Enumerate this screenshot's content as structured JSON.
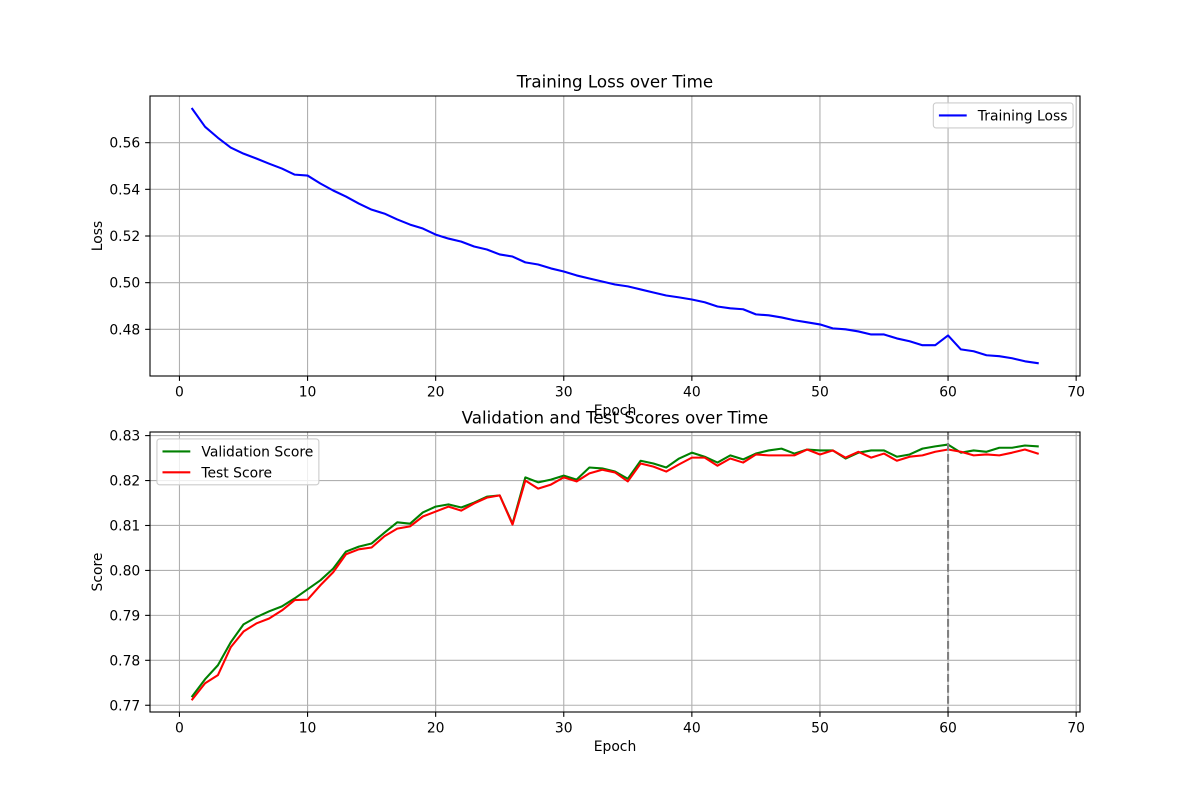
{
  "chart_data": [
    {
      "type": "line",
      "title": "Training Loss over Time",
      "xlabel": "Epoch",
      "ylabel": "Loss",
      "xlim": [
        -2.3,
        70.3
      ],
      "ylim": [
        0.46,
        0.58
      ],
      "x_ticks": [
        "0",
        "10",
        "20",
        "30",
        "40",
        "50",
        "60",
        "70"
      ],
      "y_ticks": [
        "0.48",
        "0.50",
        "0.52",
        "0.54",
        "0.56"
      ],
      "grid": true,
      "legend": "upper right",
      "x": [
        1,
        2,
        3,
        4,
        5,
        6,
        7,
        8,
        9,
        10,
        11,
        12,
        13,
        14,
        15,
        16,
        17,
        18,
        19,
        20,
        21,
        22,
        23,
        24,
        25,
        26,
        27,
        28,
        29,
        30,
        31,
        32,
        33,
        34,
        35,
        36,
        37,
        38,
        39,
        40,
        41,
        42,
        43,
        44,
        45,
        46,
        47,
        48,
        49,
        50,
        51,
        52,
        53,
        54,
        55,
        56,
        57,
        58,
        59,
        60,
        61,
        62,
        63,
        64,
        65,
        66,
        67
      ],
      "series": [
        {
          "name": "Training Loss",
          "color": "#0000ff",
          "values": [
            0.5745,
            0.5668,
            0.5621,
            0.5579,
            0.5553,
            0.5532,
            0.551,
            0.5489,
            0.5463,
            0.5459,
            0.5425,
            0.5395,
            0.5369,
            0.5339,
            0.5313,
            0.5296,
            0.5271,
            0.5249,
            0.5232,
            0.5206,
            0.5189,
            0.5176,
            0.5155,
            0.5142,
            0.5121,
            0.5112,
            0.5087,
            0.5078,
            0.5061,
            0.5048,
            0.5031,
            0.5018,
            0.5005,
            0.4992,
            0.4984,
            0.4971,
            0.4958,
            0.4945,
            0.4937,
            0.4928,
            0.4916,
            0.4898,
            0.489,
            0.4886,
            0.4864,
            0.486,
            0.4851,
            0.4839,
            0.483,
            0.4821,
            0.4804,
            0.48,
            0.4791,
            0.4778,
            0.4778,
            0.4761,
            0.4749,
            0.4732,
            0.4732,
            0.4774,
            0.4714,
            0.4706,
            0.4689,
            0.4685,
            0.4676,
            0.4663,
            0.4655
          ]
        }
      ]
    },
    {
      "type": "line",
      "title": "Validation and Test Scores over Time",
      "xlabel": "Epoch",
      "ylabel": "Score",
      "xlim": [
        -2.3,
        70.3
      ],
      "ylim": [
        0.7685,
        0.8308
      ],
      "x_ticks": [
        "0",
        "10",
        "20",
        "30",
        "40",
        "50",
        "60",
        "70"
      ],
      "y_ticks": [
        "0.77",
        "0.78",
        "0.79",
        "0.80",
        "0.81",
        "0.82",
        "0.83"
      ],
      "grid": true,
      "legend": "upper left",
      "reference_lines": [
        {
          "axis": "x",
          "value": 60,
          "color": "#808080",
          "style": "dashed"
        }
      ],
      "x": [
        1,
        2,
        3,
        4,
        5,
        6,
        7,
        8,
        9,
        10,
        11,
        12,
        13,
        14,
        15,
        16,
        17,
        18,
        19,
        20,
        21,
        22,
        23,
        24,
        25,
        26,
        27,
        28,
        29,
        30,
        31,
        32,
        33,
        34,
        35,
        36,
        37,
        38,
        39,
        40,
        41,
        42,
        43,
        44,
        45,
        46,
        47,
        48,
        49,
        50,
        51,
        52,
        53,
        54,
        55,
        56,
        57,
        58,
        59,
        60,
        61,
        62,
        63,
        64,
        65,
        66,
        67
      ],
      "series": [
        {
          "name": "Validation Score",
          "color": "#008000",
          "values": [
            0.772,
            0.7758,
            0.7789,
            0.784,
            0.788,
            0.7896,
            0.7909,
            0.792,
            0.7938,
            0.7958,
            0.7978,
            0.8004,
            0.8042,
            0.8053,
            0.806,
            0.8084,
            0.8107,
            0.8104,
            0.8129,
            0.8142,
            0.8147,
            0.814,
            0.8151,
            0.8164,
            0.8167,
            0.8104,
            0.8207,
            0.8196,
            0.8202,
            0.8211,
            0.8202,
            0.8229,
            0.8227,
            0.822,
            0.8204,
            0.8244,
            0.8238,
            0.8229,
            0.8249,
            0.8262,
            0.8253,
            0.824,
            0.8256,
            0.8247,
            0.826,
            0.8267,
            0.8271,
            0.826,
            0.8269,
            0.8267,
            0.8267,
            0.8249,
            0.8262,
            0.8267,
            0.8267,
            0.8253,
            0.8258,
            0.8271,
            0.8276,
            0.828,
            0.8262,
            0.8267,
            0.8264,
            0.8273,
            0.8273,
            0.8278,
            0.8276
          ]
        },
        {
          "name": "Test Score",
          "color": "#ff0000",
          "values": [
            0.7713,
            0.7749,
            0.7767,
            0.7829,
            0.7864,
            0.7882,
            0.7893,
            0.7911,
            0.7934,
            0.7935,
            0.7967,
            0.7996,
            0.8036,
            0.8047,
            0.8051,
            0.8076,
            0.8093,
            0.8098,
            0.812,
            0.8131,
            0.8142,
            0.8133,
            0.8149,
            0.8162,
            0.8167,
            0.8102,
            0.82,
            0.8182,
            0.8191,
            0.8207,
            0.8198,
            0.8216,
            0.8224,
            0.8218,
            0.8198,
            0.8238,
            0.8231,
            0.822,
            0.8236,
            0.8251,
            0.8251,
            0.8233,
            0.8249,
            0.824,
            0.8258,
            0.8256,
            0.8256,
            0.8256,
            0.8269,
            0.8258,
            0.8267,
            0.8251,
            0.8264,
            0.8251,
            0.826,
            0.8244,
            0.8253,
            0.8256,
            0.8264,
            0.8269,
            0.8264,
            0.8256,
            0.8258,
            0.8256,
            0.8262,
            0.8269,
            0.826
          ]
        }
      ]
    }
  ]
}
